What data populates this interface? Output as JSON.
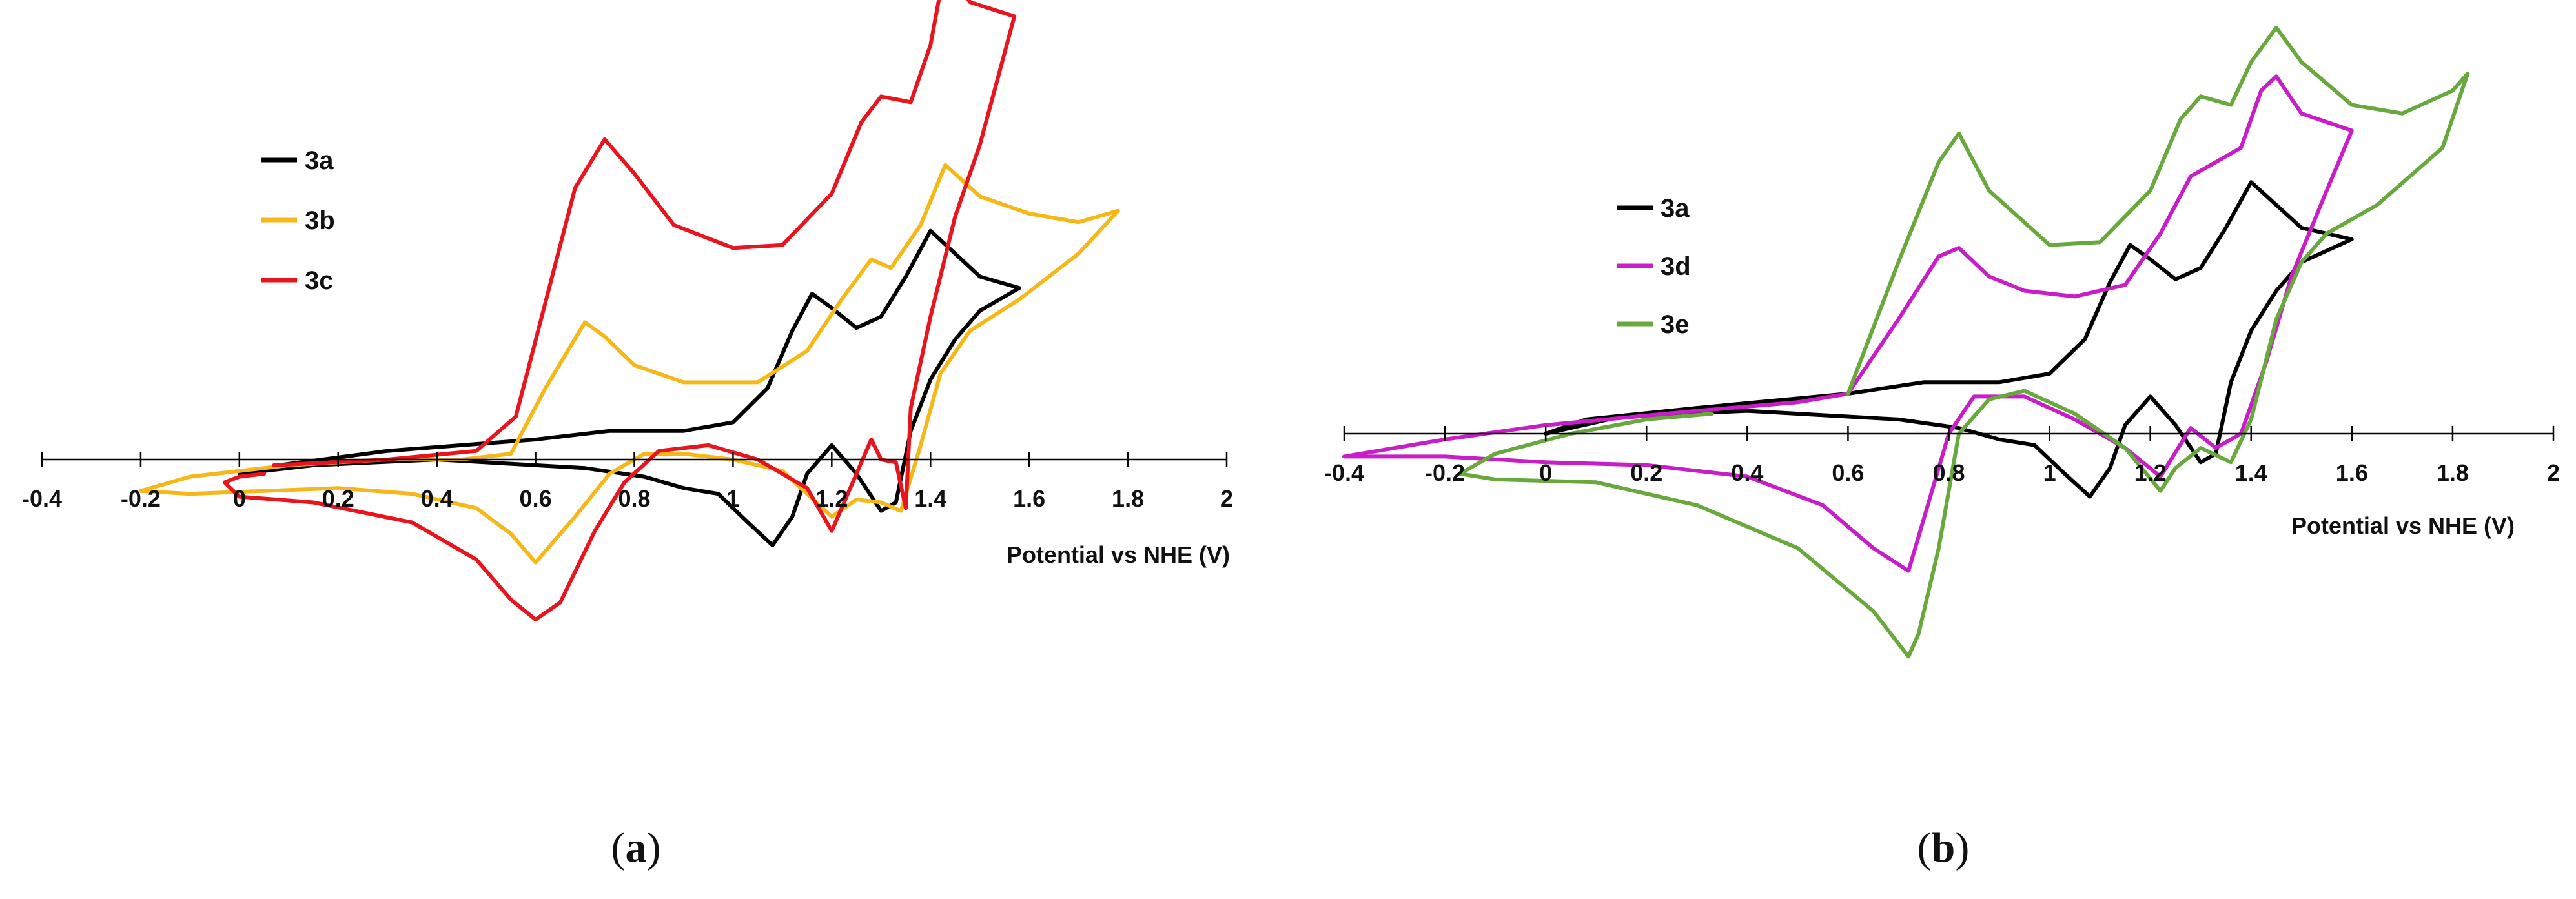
{
  "panels": [
    {
      "label_open": "(",
      "label_letter": "a",
      "label_close": ")",
      "xlabel": "Potential vs NHE (V)",
      "xlim": [
        -0.4,
        2
      ],
      "xticks": [
        "-0.4",
        "-0.2",
        "0",
        "0.2",
        "0.4",
        "0.6",
        "0.8",
        "1",
        "1.2",
        "1.4",
        "1.6",
        "1.8",
        "2"
      ]
    },
    {
      "label_open": "(",
      "label_letter": "b",
      "label_close": ")",
      "xlabel": "Potential vs NHE (V)",
      "xlim": [
        -0.4,
        2
      ],
      "xticks": [
        "-0.4",
        "-0.2",
        "0",
        "0.2",
        "0.4",
        "0.6",
        "0.8",
        "1",
        "1.2",
        "1.4",
        "1.6",
        "1.8",
        "2"
      ]
    }
  ],
  "chart_data": [
    {
      "type": "line",
      "xlabel": "Potential vs NHE (V)",
      "ylabel": "",
      "xlim": [
        -0.4,
        2
      ],
      "ylim": [
        -1.0,
        1.5
      ],
      "grid": false,
      "legend_position": "top-left",
      "series": [
        {
          "name": "3a",
          "color": "#000000",
          "points": [
            [
              0.08,
              -0.02
            ],
            [
              0.3,
              0.03
            ],
            [
              0.6,
              0.07
            ],
            [
              0.75,
              0.1
            ],
            [
              0.9,
              0.1
            ],
            [
              1.0,
              0.13
            ],
            [
              1.07,
              0.25
            ],
            [
              1.12,
              0.45
            ],
            [
              1.16,
              0.58
            ],
            [
              1.2,
              0.53
            ],
            [
              1.25,
              0.46
            ],
            [
              1.3,
              0.5
            ],
            [
              1.35,
              0.64
            ],
            [
              1.4,
              0.8
            ],
            [
              1.45,
              0.72
            ],
            [
              1.5,
              0.64
            ],
            [
              1.58,
              0.6
            ],
            [
              1.5,
              0.52
            ],
            [
              1.45,
              0.42
            ],
            [
              1.4,
              0.28
            ],
            [
              1.36,
              0.1
            ],
            [
              1.33,
              -0.15
            ],
            [
              1.3,
              -0.18
            ],
            [
              1.25,
              -0.05
            ],
            [
              1.2,
              0.05
            ],
            [
              1.15,
              -0.05
            ],
            [
              1.12,
              -0.2
            ],
            [
              1.08,
              -0.3
            ],
            [
              1.03,
              -0.22
            ],
            [
              0.97,
              -0.12
            ],
            [
              0.9,
              -0.1
            ],
            [
              0.82,
              -0.06
            ],
            [
              0.7,
              -0.03
            ],
            [
              0.4,
              0.0
            ],
            [
              0.15,
              -0.02
            ],
            [
              0.0,
              -0.05
            ]
          ]
        },
        {
          "name": "3b",
          "color": "#f5b818",
          "points": [
            [
              0.55,
              0.02
            ],
            [
              0.62,
              0.25
            ],
            [
              0.7,
              0.48
            ],
            [
              0.74,
              0.43
            ],
            [
              0.8,
              0.33
            ],
            [
              0.9,
              0.27
            ],
            [
              1.05,
              0.27
            ],
            [
              1.15,
              0.38
            ],
            [
              1.22,
              0.56
            ],
            [
              1.28,
              0.7
            ],
            [
              1.32,
              0.67
            ],
            [
              1.38,
              0.82
            ],
            [
              1.43,
              1.03
            ],
            [
              1.5,
              0.92
            ],
            [
              1.6,
              0.86
            ],
            [
              1.7,
              0.83
            ],
            [
              1.78,
              0.87
            ],
            [
              1.7,
              0.72
            ],
            [
              1.58,
              0.56
            ],
            [
              1.48,
              0.45
            ],
            [
              1.42,
              0.3
            ],
            [
              1.38,
              0.05
            ],
            [
              1.34,
              -0.18
            ],
            [
              1.3,
              -0.15
            ],
            [
              1.25,
              -0.14
            ],
            [
              1.2,
              -0.2
            ],
            [
              1.15,
              -0.12
            ],
            [
              1.1,
              -0.04
            ],
            [
              1.0,
              0.0
            ],
            [
              0.9,
              0.02
            ],
            [
              0.82,
              0.02
            ],
            [
              0.75,
              -0.05
            ],
            [
              0.68,
              -0.2
            ],
            [
              0.63,
              -0.3
            ],
            [
              0.6,
              -0.36
            ],
            [
              0.55,
              -0.26
            ],
            [
              0.48,
              -0.17
            ],
            [
              0.35,
              -0.12
            ],
            [
              0.2,
              -0.1
            ],
            [
              0.05,
              -0.11
            ],
            [
              -0.1,
              -0.12
            ],
            [
              -0.2,
              -0.11
            ],
            [
              -0.1,
              -0.06
            ],
            [
              0.1,
              -0.02
            ],
            [
              0.3,
              0.0
            ],
            [
              0.45,
              0.0
            ],
            [
              0.55,
              0.02
            ]
          ]
        },
        {
          "name": "3c",
          "color": "#e8141e",
          "points": [
            [
              0.07,
              -0.02
            ],
            [
              0.3,
              0.0
            ],
            [
              0.48,
              0.03
            ],
            [
              0.56,
              0.15
            ],
            [
              0.62,
              0.55
            ],
            [
              0.68,
              0.95
            ],
            [
              0.74,
              1.12
            ],
            [
              0.8,
              1.0
            ],
            [
              0.88,
              0.82
            ],
            [
              1.0,
              0.74
            ],
            [
              1.1,
              0.75
            ],
            [
              1.2,
              0.93
            ],
            [
              1.26,
              1.18
            ],
            [
              1.3,
              1.27
            ],
            [
              1.36,
              1.25
            ],
            [
              1.4,
              1.45
            ],
            [
              1.43,
              1.73
            ],
            [
              1.48,
              1.6
            ],
            [
              1.57,
              1.55
            ],
            [
              1.5,
              1.1
            ],
            [
              1.45,
              0.85
            ],
            [
              1.4,
              0.5
            ],
            [
              1.36,
              0.18
            ],
            [
              1.35,
              -0.17
            ],
            [
              1.33,
              -0.01
            ],
            [
              1.3,
              0.0
            ],
            [
              1.28,
              0.07
            ],
            [
              1.25,
              -0.05
            ],
            [
              1.2,
              -0.25
            ],
            [
              1.15,
              -0.1
            ],
            [
              1.05,
              0.0
            ],
            [
              0.95,
              0.05
            ],
            [
              0.85,
              0.03
            ],
            [
              0.78,
              -0.08
            ],
            [
              0.72,
              -0.25
            ],
            [
              0.65,
              -0.5
            ],
            [
              0.6,
              -0.56
            ],
            [
              0.55,
              -0.49
            ],
            [
              0.48,
              -0.35
            ],
            [
              0.35,
              -0.22
            ],
            [
              0.15,
              -0.15
            ],
            [
              0.0,
              -0.13
            ],
            [
              -0.03,
              -0.08
            ],
            [
              0.0,
              -0.06
            ],
            [
              0.05,
              -0.05
            ]
          ]
        }
      ]
    },
    {
      "type": "line",
      "xlabel": "Potential vs NHE (V)",
      "ylabel": "",
      "xlim": [
        -0.4,
        2
      ],
      "ylim": [
        -1.0,
        1.5
      ],
      "grid": false,
      "legend_position": "top-left",
      "series": [
        {
          "name": "3a",
          "color": "#000000",
          "points": [
            [
              0.08,
              0.05
            ],
            [
              0.3,
              0.09
            ],
            [
              0.6,
              0.14
            ],
            [
              0.75,
              0.18
            ],
            [
              0.9,
              0.18
            ],
            [
              1.0,
              0.21
            ],
            [
              1.07,
              0.33
            ],
            [
              1.12,
              0.53
            ],
            [
              1.16,
              0.66
            ],
            [
              1.2,
              0.61
            ],
            [
              1.25,
              0.54
            ],
            [
              1.3,
              0.58
            ],
            [
              1.35,
              0.72
            ],
            [
              1.4,
              0.88
            ],
            [
              1.45,
              0.8
            ],
            [
              1.5,
              0.72
            ],
            [
              1.6,
              0.68
            ],
            [
              1.5,
              0.6
            ],
            [
              1.45,
              0.5
            ],
            [
              1.4,
              0.36
            ],
            [
              1.36,
              0.18
            ],
            [
              1.33,
              -0.07
            ],
            [
              1.3,
              -0.1
            ],
            [
              1.25,
              0.03
            ],
            [
              1.2,
              0.13
            ],
            [
              1.15,
              0.03
            ],
            [
              1.12,
              -0.12
            ],
            [
              1.08,
              -0.22
            ],
            [
              1.03,
              -0.14
            ],
            [
              0.97,
              -0.04
            ],
            [
              0.9,
              -0.02
            ],
            [
              0.82,
              0.02
            ],
            [
              0.7,
              0.05
            ],
            [
              0.4,
              0.08
            ],
            [
              0.15,
              0.06
            ],
            [
              0.0,
              0.0
            ],
            [
              0.08,
              0.05
            ]
          ]
        },
        {
          "name": "3d",
          "color": "#c81ec8",
          "points": [
            [
              0.6,
              0.14
            ],
            [
              0.7,
              0.4
            ],
            [
              0.78,
              0.62
            ],
            [
              0.82,
              0.65
            ],
            [
              0.88,
              0.55
            ],
            [
              0.95,
              0.5
            ],
            [
              1.05,
              0.48
            ],
            [
              1.15,
              0.52
            ],
            [
              1.22,
              0.7
            ],
            [
              1.28,
              0.9
            ],
            [
              1.33,
              0.95
            ],
            [
              1.38,
              1.0
            ],
            [
              1.42,
              1.2
            ],
            [
              1.45,
              1.25
            ],
            [
              1.5,
              1.12
            ],
            [
              1.6,
              1.06
            ],
            [
              1.55,
              0.85
            ],
            [
              1.48,
              0.55
            ],
            [
              1.43,
              0.25
            ],
            [
              1.38,
              0.0
            ],
            [
              1.33,
              -0.05
            ],
            [
              1.28,
              0.02
            ],
            [
              1.22,
              -0.15
            ],
            [
              1.15,
              -0.05
            ],
            [
              1.05,
              0.05
            ],
            [
              0.95,
              0.13
            ],
            [
              0.85,
              0.13
            ],
            [
              0.8,
              0.0
            ],
            [
              0.75,
              -0.3
            ],
            [
              0.72,
              -0.48
            ],
            [
              0.65,
              -0.4
            ],
            [
              0.55,
              -0.25
            ],
            [
              0.4,
              -0.15
            ],
            [
              0.2,
              -0.11
            ],
            [
              0.0,
              -0.1
            ],
            [
              -0.2,
              -0.08
            ],
            [
              -0.4,
              -0.08
            ],
            [
              -0.2,
              -0.02
            ],
            [
              0.0,
              0.03
            ],
            [
              0.3,
              0.08
            ],
            [
              0.5,
              0.11
            ],
            [
              0.6,
              0.14
            ]
          ]
        },
        {
          "name": "3e",
          "color": "#68a83c",
          "points": [
            [
              0.6,
              0.14
            ],
            [
              0.7,
              0.6
            ],
            [
              0.78,
              0.95
            ],
            [
              0.82,
              1.05
            ],
            [
              0.88,
              0.85
            ],
            [
              1.0,
              0.66
            ],
            [
              1.1,
              0.67
            ],
            [
              1.2,
              0.85
            ],
            [
              1.26,
              1.1
            ],
            [
              1.3,
              1.18
            ],
            [
              1.36,
              1.15
            ],
            [
              1.4,
              1.3
            ],
            [
              1.45,
              1.42
            ],
            [
              1.5,
              1.3
            ],
            [
              1.6,
              1.15
            ],
            [
              1.7,
              1.12
            ],
            [
              1.8,
              1.2
            ],
            [
              1.83,
              1.26
            ],
            [
              1.78,
              1.0
            ],
            [
              1.65,
              0.8
            ],
            [
              1.55,
              0.7
            ],
            [
              1.5,
              0.6
            ],
            [
              1.45,
              0.4
            ],
            [
              1.4,
              0.05
            ],
            [
              1.36,
              -0.1
            ],
            [
              1.3,
              -0.05
            ],
            [
              1.25,
              -0.12
            ],
            [
              1.22,
              -0.2
            ],
            [
              1.15,
              -0.05
            ],
            [
              1.05,
              0.07
            ],
            [
              0.95,
              0.15
            ],
            [
              0.88,
              0.12
            ],
            [
              0.82,
              0.0
            ],
            [
              0.78,
              -0.4
            ],
            [
              0.74,
              -0.7
            ],
            [
              0.72,
              -0.78
            ],
            [
              0.65,
              -0.62
            ],
            [
              0.5,
              -0.4
            ],
            [
              0.3,
              -0.25
            ],
            [
              0.1,
              -0.17
            ],
            [
              -0.1,
              -0.16
            ],
            [
              -0.17,
              -0.14
            ],
            [
              -0.1,
              -0.07
            ],
            [
              0.05,
              0.0
            ],
            [
              0.2,
              0.05
            ],
            [
              0.33,
              0.07
            ]
          ]
        }
      ]
    }
  ]
}
